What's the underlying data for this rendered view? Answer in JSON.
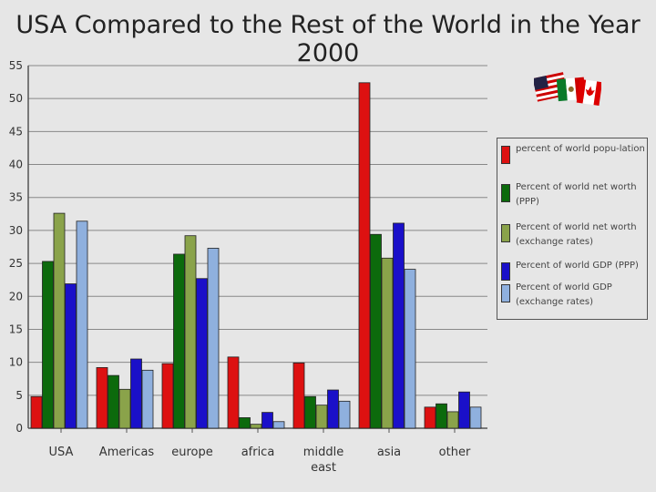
{
  "chart_data": {
    "type": "bar",
    "title": "USA Compared to the Rest of the World in the Year 2000",
    "xlabel": "",
    "ylabel": "",
    "ylim": [
      0,
      55
    ],
    "yticks": [
      0,
      5,
      10,
      15,
      20,
      25,
      30,
      35,
      40,
      45,
      50,
      55
    ],
    "grid": true,
    "legend_position": "right",
    "categories": [
      "USA",
      "Americas",
      "europe",
      "africa",
      "middle east",
      "asia",
      "other"
    ],
    "series": [
      {
        "name": "percent of world population",
        "color": "#dd1111",
        "values": [
          4.8,
          9.2,
          9.8,
          10.8,
          9.9,
          52.4,
          3.2
        ]
      },
      {
        "name": "Percent of world net worth (PPP)",
        "color": "#0c6a0c",
        "values": [
          25.3,
          8.0,
          26.4,
          1.6,
          4.8,
          29.4,
          3.7
        ]
      },
      {
        "name": "Percent of world net worth (exchange rates)",
        "color": "#8aa34a",
        "values": [
          32.6,
          5.9,
          29.2,
          0.6,
          3.5,
          25.8,
          2.5
        ]
      },
      {
        "name": "Percent of world GDP (PPP)",
        "color": "#1a10c9",
        "values": [
          21.9,
          10.5,
          22.7,
          2.4,
          5.8,
          31.1,
          5.5
        ]
      },
      {
        "name": "Percent of world GDP (exchange rates)",
        "color": "#8fb0de",
        "values": [
          31.4,
          8.8,
          27.3,
          1.0,
          4.1,
          24.1,
          3.2
        ]
      }
    ]
  },
  "legend": {
    "items": [
      "percent of world popu-lation",
      "Percent of world net worth (PPP)",
      "Percent of world net worth (exchange rates)",
      "Percent of world GDP (PPP)",
      "Percent of world GDP (exchange rates)"
    ]
  },
  "flags_icon": "usa-mexico-canada-flags-icon"
}
